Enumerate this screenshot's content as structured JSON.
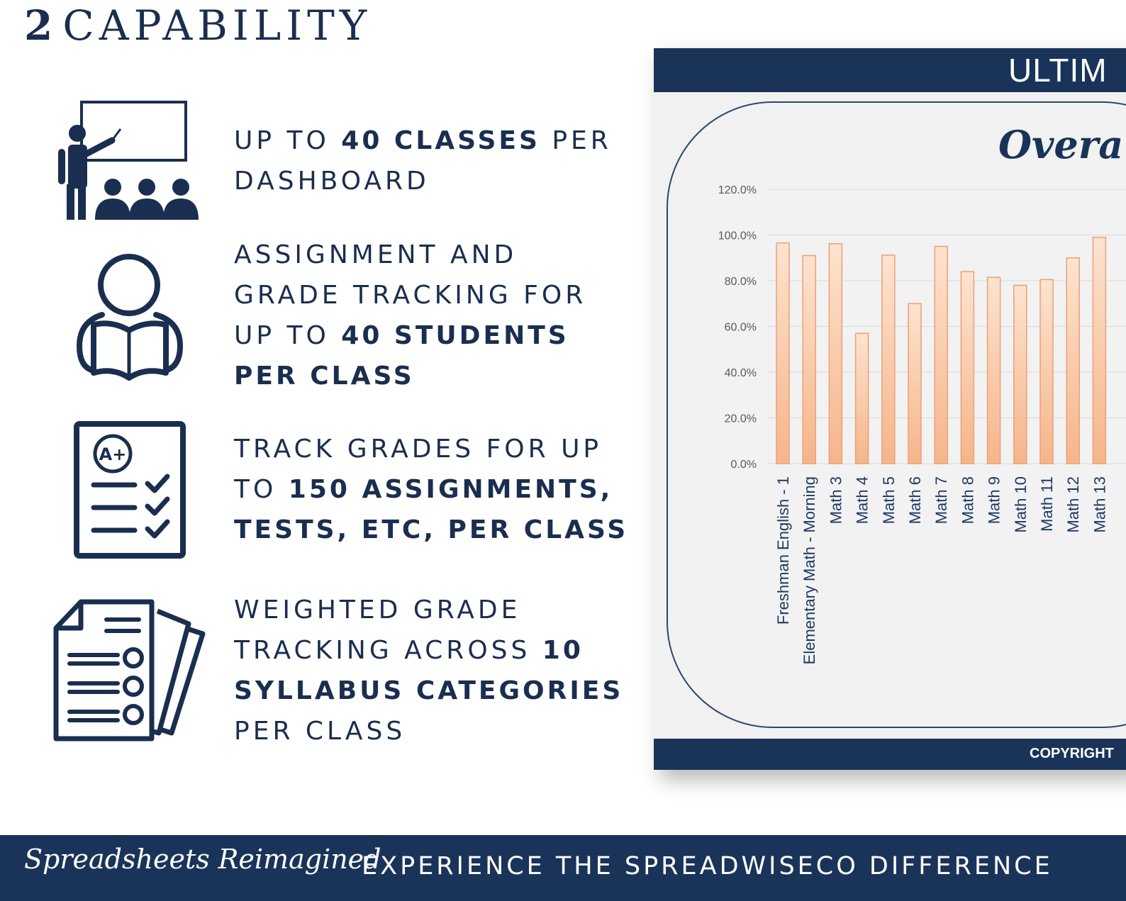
{
  "section": {
    "number": "2",
    "title": "CAPABILITY"
  },
  "features": [
    {
      "icon": "teacher-classroom-icon",
      "parts": [
        [
          "UP TO ",
          false
        ],
        [
          "40 CLASSES",
          true
        ],
        [
          " PER DASHBOARD",
          false
        ]
      ]
    },
    {
      "icon": "student-reading-icon",
      "parts": [
        [
          "ASSIGNMENT AND GRADE TRACKING FOR UP TO ",
          false
        ],
        [
          "40 STUDENTS PER CLASS",
          true
        ]
      ]
    },
    {
      "icon": "graded-checklist-icon",
      "parts": [
        [
          "TRACK GRADES FOR UP TO ",
          false
        ],
        [
          "150 ASSIGNMENTS, TESTS, ETC, PER CLASS",
          true
        ]
      ]
    },
    {
      "icon": "documents-stack-icon",
      "parts": [
        [
          "WEIGHTED GRADE TRACKING ACROSS ",
          false
        ],
        [
          "10 SYLLABUS CATEGORIES",
          true
        ],
        [
          " PER CLASS",
          false
        ]
      ]
    }
  ],
  "dashboard": {
    "header": "ULTIM",
    "footer": "COPYRIGHT"
  },
  "chart_data": {
    "type": "bar",
    "title": "Overa",
    "categories": [
      "Freshman English - 1",
      "Elementary Math - Morning",
      "Math 3",
      "Math 4",
      "Math 5",
      "Math 6",
      "Math 7",
      "Math 8",
      "Math 9",
      "Math 10",
      "Math 11",
      "Math 12",
      "Math 13"
    ],
    "values": [
      96.5,
      91.0,
      96.2,
      57.0,
      91.2,
      70.0,
      95.0,
      84.0,
      81.5,
      78.0,
      80.5,
      90.0,
      99.0
    ],
    "ylim": [
      0,
      120
    ],
    "yticks": [
      "0.0%",
      "20.0%",
      "40.0%",
      "60.0%",
      "80.0%",
      "100.0%",
      "120.0%"
    ],
    "grid": true,
    "colors": {
      "bar_fill_top": "#fde3cf",
      "bar_fill_bottom": "#f6b58a",
      "bar_stroke": "#e9a07a"
    }
  },
  "banner": {
    "script_text": "Spreadsheets Reimagined",
    "tagline": "EXPERIENCE THE SPREADWISECO DIFFERENCE"
  },
  "colors": {
    "navy": "#1a2e4f",
    "dash_navy": "#1a3459"
  }
}
